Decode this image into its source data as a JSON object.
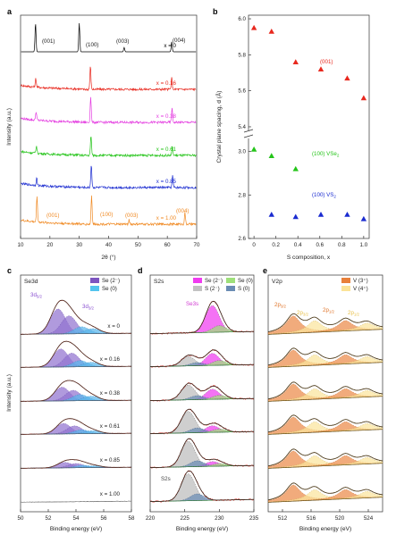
{
  "panels": {
    "a": {
      "letter": "a",
      "xlabel": "2θ (°)",
      "ylabel": "Intensity (a.u.)",
      "xticks": [
        "10",
        "20",
        "30",
        "40",
        "50",
        "60",
        "70"
      ],
      "traces": [
        {
          "label": "x = 0",
          "color": "#000000"
        },
        {
          "label": "x = 0.16",
          "color": "#e8281e"
        },
        {
          "label": "x = 0.38",
          "color": "#e43ce0"
        },
        {
          "label": "x = 0.61",
          "color": "#24c419"
        },
        {
          "label": "x = 0.85",
          "color": "#1a2bd0"
        },
        {
          "label": "x = 1.00",
          "color": "#f08a24"
        }
      ],
      "peaks_top": [
        "(001)",
        "(100)",
        "(003)",
        "(004)"
      ],
      "peaks_bottom": [
        "(001)",
        "(100)",
        "(003)",
        "(004)"
      ]
    },
    "b": {
      "letter": "b",
      "xlabel": "S composition, x",
      "ylabel": "Crystal plane spacing, d (Å)",
      "xticks": [
        "0",
        "0.2",
        "0.4",
        "0.6",
        "0.8",
        "1.0"
      ],
      "yticks_upper": [
        "5.4",
        "5.6",
        "5.8",
        "6.0"
      ],
      "yticks_lower": [
        "2.6",
        "2.8",
        "3.0"
      ],
      "label_001": "(001)",
      "label_100_vse2": "(100)  VSe",
      "label_vse2_sub": "2",
      "label_100_vs2": "(100)  VS",
      "label_vs2_sub": "2"
    },
    "c": {
      "letter": "c",
      "title": "Se3d",
      "legend": [
        "Se (2⁻)",
        "Se (0)"
      ],
      "xlabel": "Binding energy (eV)",
      "ylabel": "Intensity (a.u.)",
      "xticks": [
        "50",
        "52",
        "54",
        "56",
        "58"
      ],
      "peak_labels": [
        "3d",
        "5/2",
        "3d",
        "3/2"
      ],
      "traces": [
        "x = 0",
        "x = 0.16",
        "x = 0.38",
        "x = 0.61",
        "x = 0.85",
        "x = 1.00"
      ]
    },
    "d": {
      "letter": "d",
      "title": "S2s",
      "legend": [
        "Se (2⁻)",
        "Se (0)",
        "S (2⁻)",
        "S (0)"
      ],
      "xlabel": "Binding energy (eV)",
      "xticks": [
        "220",
        "225",
        "230",
        "235"
      ],
      "peak_label_top": "Se3s",
      "peak_label_bottom": "S2s"
    },
    "e": {
      "letter": "e",
      "title": "V2p",
      "legend": [
        "V (3⁺)",
        "V (4⁺)"
      ],
      "xlabel": "Binding energy (eV)",
      "xticks": [
        "512",
        "516",
        "520",
        "524"
      ],
      "peak_labels": [
        "2p",
        "3/2",
        "2p",
        "3/2",
        "2p",
        "1/2",
        "2p",
        "1/2"
      ]
    }
  },
  "chart_data": [
    {
      "type": "line",
      "panel": "a",
      "xlabel": "2θ (°)",
      "ylabel": "Intensity (a.u.)",
      "xlim": [
        10,
        70
      ],
      "series": [
        {
          "name": "x = 0",
          "peaks_2theta": [
            15.1,
            30.0,
            45.3,
            61.5
          ],
          "peak_heights": [
            1.0,
            1.0,
            0.15,
            0.35
          ]
        },
        {
          "name": "x = 0.16",
          "peaks_2theta": [
            15.2,
            33.8,
            61.5
          ],
          "peak_heights": [
            0.3,
            0.8,
            0.4
          ]
        },
        {
          "name": "x = 0.38",
          "peaks_2theta": [
            15.3,
            33.9,
            61.6
          ],
          "peak_heights": [
            0.3,
            0.9,
            0.5
          ]
        },
        {
          "name": "x = 0.61",
          "peaks_2theta": [
            15.4,
            34.0,
            61.7
          ],
          "peak_heights": [
            0.25,
            0.7,
            0.3
          ]
        },
        {
          "name": "x = 0.85",
          "peaks_2theta": [
            15.5,
            34.1,
            61.8
          ],
          "peak_heights": [
            0.25,
            0.8,
            0.4
          ]
        },
        {
          "name": "x = 1.00",
          "peaks_2theta": [
            15.6,
            34.2,
            47.0,
            66.0
          ],
          "peak_heights": [
            0.9,
            1.0,
            0.15,
            0.4
          ]
        }
      ]
    },
    {
      "type": "scatter",
      "panel": "b",
      "xlabel": "S composition, x",
      "ylabel": "Crystal plane spacing, d (Å)",
      "xlim": [
        -0.05,
        1.05
      ],
      "ylim_upper": [
        5.4,
        6.0
      ],
      "ylim_lower": [
        2.6,
        3.0
      ],
      "series": [
        {
          "name": "(001)",
          "color": "#e8281e",
          "x": [
            0,
            0.16,
            0.38,
            0.61,
            0.85,
            1.0
          ],
          "y": [
            5.95,
            5.93,
            5.76,
            5.72,
            5.67,
            5.56
          ]
        },
        {
          "name": "(100)  VSe2",
          "color": "#24c419",
          "x": [
            0,
            0.16,
            0.38
          ],
          "y": [
            3.01,
            2.98,
            2.92
          ]
        },
        {
          "name": "(100)  VS2",
          "color": "#1a2bd0",
          "x": [
            0.16,
            0.38,
            0.61,
            0.85,
            1.0
          ],
          "y": [
            2.71,
            2.7,
            2.71,
            2.71,
            2.69
          ]
        }
      ]
    },
    {
      "type": "line",
      "panel": "c",
      "xlabel": "Binding energy (eV)",
      "xlim": [
        50,
        58
      ],
      "series": [
        {
          "name": "x = 0",
          "components": [
            {
              "name": "Se (2⁻)",
              "center": 52.7,
              "height": 1.0
            },
            {
              "name": "Se (2⁻)",
              "center": 53.5,
              "height": 0.72
            },
            {
              "name": "Se (0)",
              "center": 54.4,
              "height": 0.28
            },
            {
              "name": "Se (0)",
              "center": 55.2,
              "height": 0.2
            }
          ]
        },
        {
          "name": "x = 0.16",
          "components": [
            {
              "name": "Se (2⁻)",
              "center": 52.9,
              "height": 0.72
            },
            {
              "name": "Se (2⁻)",
              "center": 53.7,
              "height": 0.55
            },
            {
              "name": "Se (0)",
              "center": 54.3,
              "height": 0.25
            },
            {
              "name": "Se (0)",
              "center": 55.1,
              "height": 0.18
            }
          ]
        },
        {
          "name": "x = 0.38",
          "components": [
            {
              "name": "Se (2⁻)",
              "center": 53.0,
              "height": 0.55
            },
            {
              "name": "Se (2⁻)",
              "center": 53.8,
              "height": 0.42
            },
            {
              "name": "Se (0)",
              "center": 54.3,
              "height": 0.25
            },
            {
              "name": "Se (0)",
              "center": 55.1,
              "height": 0.18
            }
          ]
        },
        {
          "name": "x = 0.61",
          "components": [
            {
              "name": "Se (2⁻)",
              "center": 53.1,
              "height": 0.42
            },
            {
              "name": "Se (2⁻)",
              "center": 53.9,
              "height": 0.32
            },
            {
              "name": "Se (0)",
              "center": 54.4,
              "height": 0.16
            },
            {
              "name": "Se (0)",
              "center": 55.2,
              "height": 0.12
            }
          ]
        },
        {
          "name": "x = 0.85",
          "components": [
            {
              "name": "Se (2⁻)",
              "center": 53.2,
              "height": 0.22
            },
            {
              "name": "Se (2⁻)",
              "center": 54.0,
              "height": 0.17
            },
            {
              "name": "Se (0)",
              "center": 54.5,
              "height": 0.1
            },
            {
              "name": "Se (0)",
              "center": 55.3,
              "height": 0.07
            }
          ]
        },
        {
          "name": "x = 1.00",
          "components": []
        }
      ]
    },
    {
      "type": "line",
      "panel": "d",
      "xlabel": "Binding energy (eV)",
      "xlim": [
        220,
        235
      ],
      "series": [
        {
          "name": "x = 0",
          "components": [
            {
              "name": "Se (2⁻)",
              "center": 229.0,
              "height": 1.0
            },
            {
              "name": "Se (0)",
              "center": 230.0,
              "height": 0.25
            }
          ]
        },
        {
          "name": "x = 0.16",
          "components": [
            {
              "name": "S (2⁻)",
              "center": 225.5,
              "height": 0.35
            },
            {
              "name": "Se (2⁻)",
              "center": 229.0,
              "height": 0.45
            },
            {
              "name": "S (0)",
              "center": 226.8,
              "height": 0.12
            },
            {
              "name": "Se (0)",
              "center": 230.0,
              "height": 0.18
            }
          ]
        },
        {
          "name": "x = 0.38",
          "components": [
            {
              "name": "S (2⁻)",
              "center": 225.5,
              "height": 0.55
            },
            {
              "name": "Se (2⁻)",
              "center": 229.0,
              "height": 0.38
            },
            {
              "name": "S (0)",
              "center": 226.8,
              "height": 0.15
            },
            {
              "name": "Se (0)",
              "center": 230.0,
              "height": 0.15
            }
          ]
        },
        {
          "name": "x = 0.61",
          "components": [
            {
              "name": "S (2⁻)",
              "center": 225.5,
              "height": 0.8
            },
            {
              "name": "Se (2⁻)",
              "center": 229.0,
              "height": 0.25
            },
            {
              "name": "S (0)",
              "center": 226.8,
              "height": 0.18
            },
            {
              "name": "Se (0)",
              "center": 230.0,
              "height": 0.12
            }
          ]
        },
        {
          "name": "x = 0.85",
          "components": [
            {
              "name": "S (2⁻)",
              "center": 225.5,
              "height": 0.95
            },
            {
              "name": "Se (2⁻)",
              "center": 229.0,
              "height": 0.18
            },
            {
              "name": "S (0)",
              "center": 226.8,
              "height": 0.22
            },
            {
              "name": "Se (0)",
              "center": 230.0,
              "height": 0.1
            }
          ]
        },
        {
          "name": "x = 1.00",
          "components": [
            {
              "name": "S (2⁻)",
              "center": 225.5,
              "height": 1.0
            },
            {
              "name": "S (0)",
              "center": 226.8,
              "height": 0.25
            }
          ]
        }
      ]
    },
    {
      "type": "line",
      "panel": "e",
      "xlabel": "Binding energy (eV)",
      "xlim": [
        510,
        526
      ],
      "series": [
        {
          "name": "x = 0",
          "components": [
            {
              "name": "V (3⁺)",
              "center": 513.5,
              "height": 0.75
            },
            {
              "name": "V (4⁺)",
              "center": 516.5,
              "height": 0.5
            },
            {
              "name": "V (3⁺)",
              "center": 520.8,
              "height": 0.45
            },
            {
              "name": "V (4⁺)",
              "center": 523.8,
              "height": 0.3
            }
          ]
        },
        {
          "name": "x = 0.16",
          "components": [
            {
              "name": "V (3⁺)",
              "center": 513.5,
              "height": 0.7
            },
            {
              "name": "V (4⁺)",
              "center": 516.5,
              "height": 0.45
            },
            {
              "name": "V (3⁺)",
              "center": 520.8,
              "height": 0.4
            },
            {
              "name": "V (4⁺)",
              "center": 523.8,
              "height": 0.28
            }
          ]
        },
        {
          "name": "x = 0.38",
          "components": [
            {
              "name": "V (3⁺)",
              "center": 513.5,
              "height": 0.7
            },
            {
              "name": "V (4⁺)",
              "center": 516.5,
              "height": 0.45
            },
            {
              "name": "V (3⁺)",
              "center": 520.8,
              "height": 0.4
            },
            {
              "name": "V (4⁺)",
              "center": 523.8,
              "height": 0.28
            }
          ]
        },
        {
          "name": "x = 0.61",
          "components": [
            {
              "name": "V (3⁺)",
              "center": 513.5,
              "height": 0.7
            },
            {
              "name": "V (4⁺)",
              "center": 516.5,
              "height": 0.45
            },
            {
              "name": "V (3⁺)",
              "center": 520.8,
              "height": 0.4
            },
            {
              "name": "V (4⁺)",
              "center": 523.8,
              "height": 0.28
            }
          ]
        },
        {
          "name": "x = 0.85",
          "components": [
            {
              "name": "V (3⁺)",
              "center": 513.5,
              "height": 0.7
            },
            {
              "name": "V (4⁺)",
              "center": 516.5,
              "height": 0.45
            },
            {
              "name": "V (3⁺)",
              "center": 520.8,
              "height": 0.4
            },
            {
              "name": "V (4⁺)",
              "center": 523.8,
              "height": 0.28
            }
          ]
        },
        {
          "name": "x = 1.00",
          "components": [
            {
              "name": "V (3⁺)",
              "center": 513.5,
              "height": 0.7
            },
            {
              "name": "V (4⁺)",
              "center": 516.5,
              "height": 0.45
            },
            {
              "name": "V (3⁺)",
              "center": 520.8,
              "height": 0.4
            },
            {
              "name": "V (4⁺)",
              "center": 523.8,
              "height": 0.28
            }
          ]
        }
      ]
    }
  ]
}
